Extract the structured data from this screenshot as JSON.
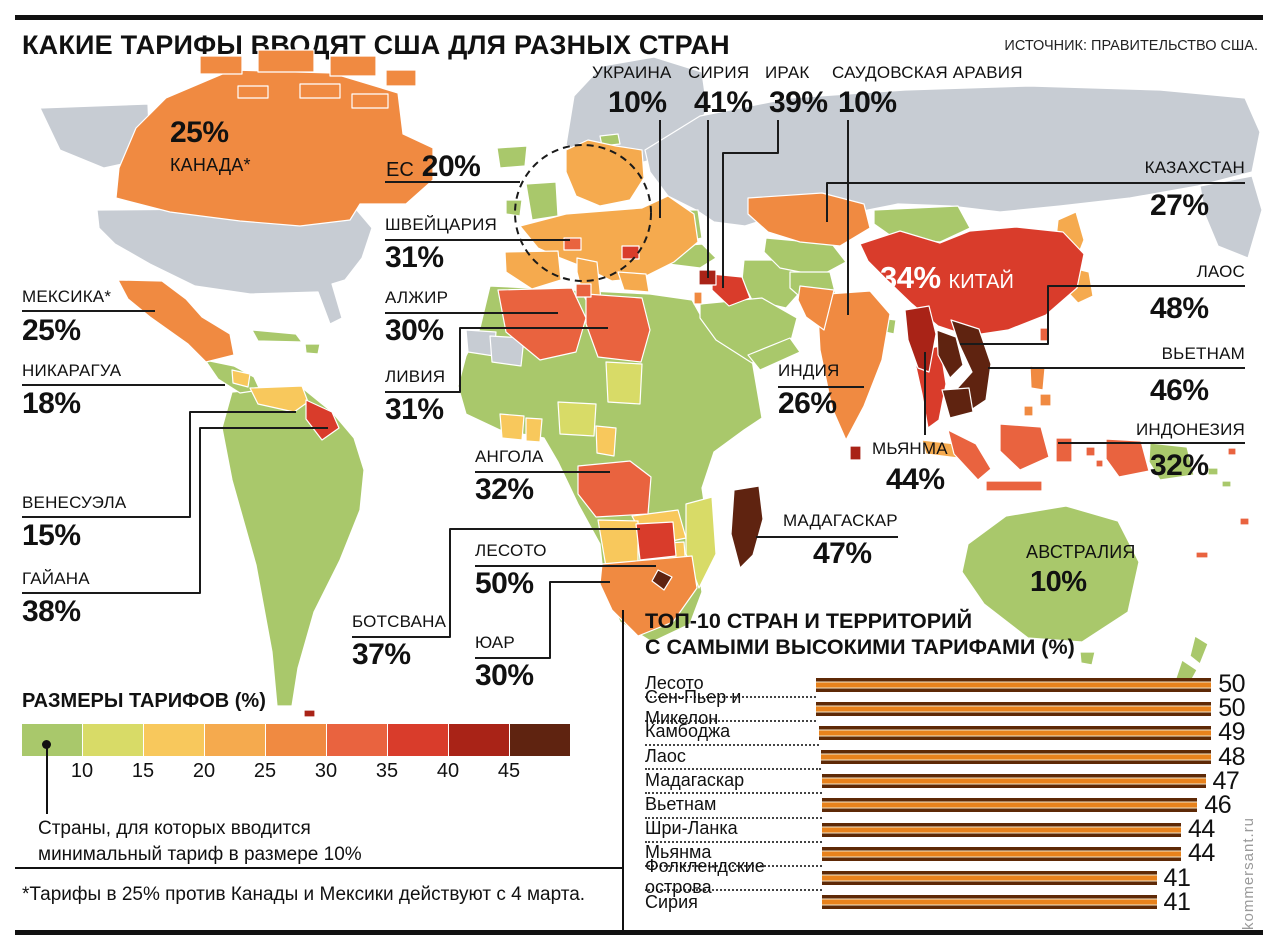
{
  "meta": {
    "title": "КАКИЕ ТАРИФЫ ВВОДЯТ США ДЛЯ РАЗНЫХ СТРАН",
    "source": "ИСТОЧНИК: ПРАВИТЕЛЬСТВО США.",
    "footnote": "*Тарифы в 25% против Канады и Мексики действуют с 4 марта.",
    "watermark": "kommersant.ru"
  },
  "legend": {
    "title": "РАЗМЕРЫ ТАРИФОВ (%)",
    "ticks": [
      "10",
      "15",
      "20",
      "25",
      "30",
      "35",
      "40",
      "45"
    ],
    "colors": [
      "#a9c86b",
      "#d8db67",
      "#f8c85c",
      "#f5aa4e",
      "#f08a41",
      "#e9633f",
      "#d93c2b",
      "#a92317",
      "#5f2310"
    ],
    "no_tariff_color": "#c7ccd3",
    "note_line1": "Страны, для которых вводится",
    "note_line2": "минимальный тариф в размере 10%"
  },
  "callouts": {
    "canada": {
      "name": "КАНАДА*",
      "value": "25%"
    },
    "mexico": {
      "name": "МЕКСИКА*",
      "value": "25%"
    },
    "nicaragua": {
      "name": "НИКАРАГУА",
      "value": "18%"
    },
    "venezuela": {
      "name": "ВЕНЕСУЭЛА",
      "value": "15%"
    },
    "guyana": {
      "name": "ГАЙАНА",
      "value": "38%"
    },
    "ec": {
      "name": "ЕС",
      "value": "20%"
    },
    "switzerland": {
      "name": "ШВЕЙЦАРИЯ",
      "value": "31%"
    },
    "algeria": {
      "name": "АЛЖИР",
      "value": "30%"
    },
    "libya": {
      "name": "ЛИВИЯ",
      "value": "31%"
    },
    "angola": {
      "name": "АНГОЛА",
      "value": "32%"
    },
    "lesotho": {
      "name": "ЛЕСОТО",
      "value": "50%"
    },
    "botswana": {
      "name": "БОТСВАНА",
      "value": "37%"
    },
    "south_africa": {
      "name": "ЮАР",
      "value": "30%"
    },
    "ukraine": {
      "name": "УКРАИНА",
      "value": "10%"
    },
    "syria": {
      "name": "СИРИЯ",
      "value": "41%"
    },
    "iraq": {
      "name": "ИРАК",
      "value": "39%"
    },
    "saudi_arabia": {
      "name": "САУДОВСКАЯ АРАВИЯ",
      "value": "10%"
    },
    "kazakhstan": {
      "name": "КАЗАХСТАН",
      "value": "27%"
    },
    "laos": {
      "name": "ЛАОС",
      "value": "48%"
    },
    "vietnam": {
      "name": "ВЬЕТНАМ",
      "value": "46%"
    },
    "indonesia": {
      "name": "ИНДОНЕЗИЯ",
      "value": "32%"
    },
    "india": {
      "name": "ИНДИЯ",
      "value": "26%"
    },
    "myanmar": {
      "name": "МЬЯНМА",
      "value": "44%"
    },
    "madagascar": {
      "name": "МАДАГАСКАР",
      "value": "47%"
    },
    "china": {
      "name": "КИТАЙ",
      "value": "34%"
    },
    "australia": {
      "name": "АВСТРАЛИЯ",
      "value": "10%"
    }
  },
  "top10": {
    "title_line1": "ТОП-10 СТРАН И ТЕРРИТОРИЙ",
    "title_line2": "С САМЫМИ ВЫСОКИМИ ТАРИФАМИ (%)",
    "max": 50,
    "rows": [
      {
        "label": "Лесото",
        "value": 50
      },
      {
        "label": "Сен-Пьер и Микелон",
        "value": 50
      },
      {
        "label": "Камбоджа",
        "value": 49
      },
      {
        "label": "Лаос",
        "value": 48
      },
      {
        "label": "Мадагаскар",
        "value": 47
      },
      {
        "label": "Вьетнам",
        "value": 46
      },
      {
        "label": "Шри-Ланка",
        "value": 44
      },
      {
        "label": "Мьянма",
        "value": 44
      },
      {
        "label": "Фолклендские острова",
        "value": 41
      },
      {
        "label": "Сирия",
        "value": 41
      }
    ]
  },
  "chart_data": [
    {
      "type": "heatmap",
      "subtype": "world-choropleth",
      "title": "КАКИЕ ТАРИФЫ ВВОДЯТ США ДЛЯ РАЗНЫХ СТРАН",
      "legend_title": "РАЗМЕРЫ ТАРИФОВ (%)",
      "scale_ticks": [
        10,
        15,
        20,
        25,
        30,
        35,
        40,
        45
      ],
      "note": "Страны, для которых вводится минимальный тариф в размере 10%",
      "labeled_points": [
        {
          "country": "Канада",
          "value": 25
        },
        {
          "country": "Мексика",
          "value": 25
        },
        {
          "country": "Никарагуа",
          "value": 18
        },
        {
          "country": "Венесуэла",
          "value": 15
        },
        {
          "country": "Гайана",
          "value": 38
        },
        {
          "country": "ЕС",
          "value": 20
        },
        {
          "country": "Швейцария",
          "value": 31
        },
        {
          "country": "Алжир",
          "value": 30
        },
        {
          "country": "Ливия",
          "value": 31
        },
        {
          "country": "Ангола",
          "value": 32
        },
        {
          "country": "Лесото",
          "value": 50
        },
        {
          "country": "Ботсвана",
          "value": 37
        },
        {
          "country": "ЮАР",
          "value": 30
        },
        {
          "country": "Украина",
          "value": 10
        },
        {
          "country": "Сирия",
          "value": 41
        },
        {
          "country": "Ирак",
          "value": 39
        },
        {
          "country": "Саудовская Аравия",
          "value": 10
        },
        {
          "country": "Казахстан",
          "value": 27
        },
        {
          "country": "Лаос",
          "value": 48
        },
        {
          "country": "Вьетнам",
          "value": 46
        },
        {
          "country": "Индонезия",
          "value": 32
        },
        {
          "country": "Индия",
          "value": 26
        },
        {
          "country": "Мьянма",
          "value": 44
        },
        {
          "country": "Мадагаскар",
          "value": 47
        },
        {
          "country": "Китай",
          "value": 34
        },
        {
          "country": "Австралия",
          "value": 10
        }
      ]
    },
    {
      "type": "bar",
      "orientation": "horizontal",
      "title": "ТОП-10 СТРАН И ТЕРРИТОРИЙ С САМЫМИ ВЫСОКИМИ ТАРИФАМИ (%)",
      "categories": [
        "Лесото",
        "Сен-Пьер и Микелон",
        "Камбоджа",
        "Лаос",
        "Мадагаскар",
        "Вьетнам",
        "Шри-Ланка",
        "Мьянма",
        "Фолклендские острова",
        "Сирия"
      ],
      "values": [
        50,
        50,
        49,
        48,
        47,
        46,
        44,
        44,
        41,
        41
      ],
      "xlim": [
        0,
        50
      ],
      "grid": false,
      "legend_position": "none"
    }
  ]
}
